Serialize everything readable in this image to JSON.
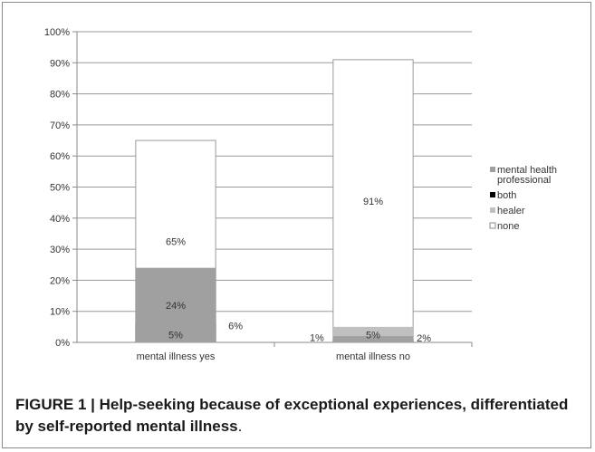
{
  "chart_data": {
    "type": "bar",
    "stacked": true,
    "percent": true,
    "categories": [
      "mental illness yes",
      "mental illness no"
    ],
    "series": [
      {
        "name": "none",
        "values": [
          65,
          91
        ],
        "color": "#ffffff"
      },
      {
        "name": "healer",
        "values": [
          5,
          5
        ],
        "color": "#c0c0c0"
      },
      {
        "name": "both",
        "values": [
          6,
          1
        ],
        "color": "#000000"
      },
      {
        "name": "mental health professional",
        "values": [
          24,
          2
        ],
        "color": "#a0a0a0"
      }
    ],
    "data_labels": [
      [
        "65%",
        "91%"
      ],
      [
        "5%",
        "5%"
      ],
      [
        "6%",
        "1%"
      ],
      [
        "24%",
        "2%"
      ]
    ],
    "y_ticks": [
      "0%",
      "10%",
      "20%",
      "30%",
      "40%",
      "50%",
      "60%",
      "70%",
      "80%",
      "90%",
      "100%"
    ],
    "ylim": [
      0,
      100
    ],
    "grid": true,
    "legend": {
      "placement": "right",
      "entries": [
        {
          "label_lines": [
            "mental health",
            "professional"
          ],
          "color": "#a0a0a0"
        },
        {
          "label_lines": [
            "both"
          ],
          "color": "#000000"
        },
        {
          "label_lines": [
            "healer"
          ],
          "color": "#c0c0c0"
        },
        {
          "label_lines": [
            "none"
          ],
          "color": "#ffffff"
        }
      ]
    },
    "title": "",
    "xlabel": "",
    "ylabel": ""
  },
  "caption": {
    "text": "FIGURE 1 | Help-seeking because of exceptional experiences, differentiated by self-reported mental illness",
    "terminal": "."
  }
}
